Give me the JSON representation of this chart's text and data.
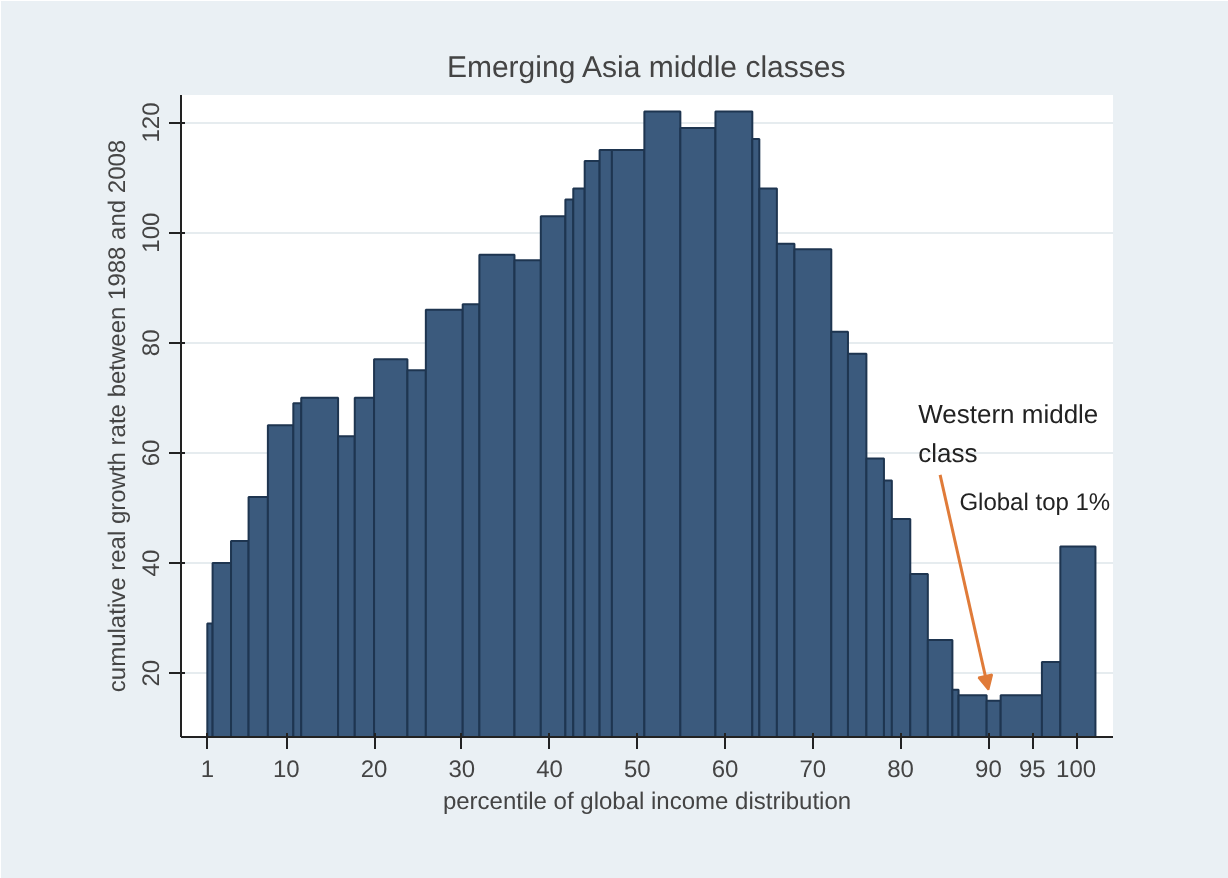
{
  "chart_data": {
    "type": "histogram",
    "title": "Emerging Asia middle classes",
    "xlabel": "percentile of global income distribution",
    "ylabel": "cumulative real growth rate between 1988 and 2008",
    "bins": [
      1,
      1.6,
      3.7,
      5.7,
      7.9,
      10.8,
      11.7,
      15.9,
      17.8,
      20,
      23.8,
      25.9,
      30.1,
      32,
      36,
      39,
      41.8,
      42.7,
      44,
      45.7,
      47.1,
      50.8,
      54.9,
      58.9,
      63.1,
      63.9,
      65.9,
      67.9,
      72.1,
      74,
      76.1,
      78.1,
      79,
      81.1,
      83.1,
      85.9,
      86.6,
      89.8,
      91.4,
      96.1,
      98.2,
      102.2
    ],
    "values": [
      29,
      40,
      44,
      52,
      65,
      69,
      70,
      63,
      70,
      77,
      75,
      86,
      87,
      96,
      95,
      103,
      106,
      108,
      113,
      115,
      115,
      122,
      119,
      122,
      117,
      108,
      98,
      97,
      82,
      78,
      59,
      55,
      48,
      38,
      26,
      17,
      16,
      15,
      16,
      22,
      43
    ],
    "color": "#3b5a7d",
    "xlim": [
      -2,
      104.2
    ],
    "ylim": [
      8.4,
      125
    ],
    "xticks": [
      1,
      10,
      20,
      30,
      40,
      50,
      60,
      70,
      80,
      90,
      95,
      100
    ],
    "yticks": [
      20,
      40,
      60,
      80,
      100,
      120
    ],
    "grid": "y",
    "annotations": [
      {
        "text": "Western middle class",
        "x": 90,
        "y": 17
      },
      {
        "text": "Global top 1%",
        "x": 100,
        "y": 43
      }
    ]
  }
}
